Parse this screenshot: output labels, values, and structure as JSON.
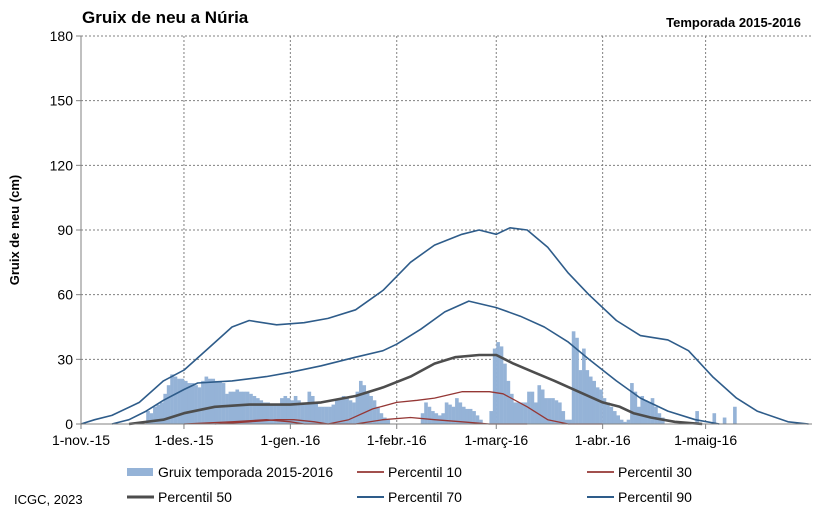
{
  "chart_data": {
    "type": "bar",
    "title": "Gruix de neu a Núria",
    "subtitle": "Temporada 2015-2016",
    "ylabel": "Gruix de neu (cm)",
    "xlabel": "",
    "ylim": [
      0,
      180
    ],
    "yticks": [
      0,
      30,
      60,
      90,
      120,
      150,
      180
    ],
    "x_start": "2015-11-01",
    "x_end": "2016-05-31",
    "xticks": [
      {
        "date": "2015-11-01",
        "label": "1-nov.-15"
      },
      {
        "date": "2015-12-01",
        "label": "1-des.-15"
      },
      {
        "date": "2016-01-01",
        "label": "1-gen.-16"
      },
      {
        "date": "2016-02-01",
        "label": "1-febr.-16"
      },
      {
        "date": "2016-03-01",
        "label": "1-març-16"
      },
      {
        "date": "2016-04-01",
        "label": "1-abr.-16"
      },
      {
        "date": "2016-05-01",
        "label": "1-maig-16"
      }
    ],
    "grid": "vertical",
    "legend": "bottom",
    "colors": {
      "bars": "#95b3d7",
      "p10": "#953735",
      "p30": "#953735",
      "p50": "#4d4d4d",
      "p70": "#2e5c8a",
      "p90": "#2e5c8a"
    },
    "bars": {
      "name": "Gruix temporada 2015-2016",
      "points": [
        [
          "2015-11-20",
          6
        ],
        [
          "2015-11-21",
          5
        ],
        [
          "2015-11-22",
          8
        ],
        [
          "2015-11-23",
          9
        ],
        [
          "2015-11-24",
          10
        ],
        [
          "2015-11-25",
          14
        ],
        [
          "2015-11-26",
          18
        ],
        [
          "2015-11-27",
          23
        ],
        [
          "2015-11-28",
          22
        ],
        [
          "2015-11-29",
          21
        ],
        [
          "2015-11-30",
          21
        ],
        [
          "2015-12-01",
          20
        ],
        [
          "2015-12-02",
          19
        ],
        [
          "2015-12-03",
          19
        ],
        [
          "2015-12-04",
          18
        ],
        [
          "2015-12-05",
          17
        ],
        [
          "2015-12-06",
          20
        ],
        [
          "2015-12-07",
          22
        ],
        [
          "2015-12-08",
          21
        ],
        [
          "2015-12-09",
          21
        ],
        [
          "2015-12-10",
          20
        ],
        [
          "2015-12-11",
          20
        ],
        [
          "2015-12-12",
          19
        ],
        [
          "2015-12-13",
          14
        ],
        [
          "2015-12-14",
          15
        ],
        [
          "2015-12-15",
          15
        ],
        [
          "2015-12-16",
          16
        ],
        [
          "2015-12-17",
          15
        ],
        [
          "2015-12-18",
          15
        ],
        [
          "2015-12-19",
          15
        ],
        [
          "2015-12-20",
          14
        ],
        [
          "2015-12-21",
          13
        ],
        [
          "2015-12-22",
          12
        ],
        [
          "2015-12-23",
          11
        ],
        [
          "2015-12-24",
          10
        ],
        [
          "2015-12-25",
          10
        ],
        [
          "2015-12-26",
          9
        ],
        [
          "2015-12-27",
          9
        ],
        [
          "2015-12-28",
          9
        ],
        [
          "2015-12-29",
          12
        ],
        [
          "2015-12-30",
          13
        ],
        [
          "2015-12-31",
          12
        ],
        [
          "2016-01-01",
          11
        ],
        [
          "2016-01-02",
          13
        ],
        [
          "2016-01-03",
          11
        ],
        [
          "2016-01-04",
          10
        ],
        [
          "2016-01-05",
          9
        ],
        [
          "2016-01-06",
          15
        ],
        [
          "2016-01-07",
          13
        ],
        [
          "2016-01-08",
          10
        ],
        [
          "2016-01-09",
          8
        ],
        [
          "2016-01-10",
          8
        ],
        [
          "2016-01-11",
          8
        ],
        [
          "2016-01-12",
          8
        ],
        [
          "2016-01-13",
          9
        ],
        [
          "2016-01-14",
          11
        ],
        [
          "2016-01-15",
          12
        ],
        [
          "2016-01-16",
          13
        ],
        [
          "2016-01-17",
          12
        ],
        [
          "2016-01-18",
          11
        ],
        [
          "2016-01-19",
          10
        ],
        [
          "2016-01-20",
          15
        ],
        [
          "2016-01-21",
          20
        ],
        [
          "2016-01-22",
          18
        ],
        [
          "2016-01-23",
          15
        ],
        [
          "2016-01-24",
          13
        ],
        [
          "2016-01-25",
          11
        ],
        [
          "2016-01-26",
          8
        ],
        [
          "2016-01-27",
          5
        ],
        [
          "2016-01-28",
          3
        ],
        [
          "2016-01-29",
          2
        ],
        [
          "2016-02-08",
          5
        ],
        [
          "2016-02-09",
          10
        ],
        [
          "2016-02-10",
          8
        ],
        [
          "2016-02-11",
          6
        ],
        [
          "2016-02-12",
          5
        ],
        [
          "2016-02-13",
          4
        ],
        [
          "2016-02-14",
          5
        ],
        [
          "2016-02-15",
          10
        ],
        [
          "2016-02-16",
          9
        ],
        [
          "2016-02-17",
          8
        ],
        [
          "2016-02-18",
          12
        ],
        [
          "2016-02-19",
          10
        ],
        [
          "2016-02-20",
          8
        ],
        [
          "2016-02-21",
          7
        ],
        [
          "2016-02-22",
          7
        ],
        [
          "2016-02-23",
          6
        ],
        [
          "2016-02-24",
          4
        ],
        [
          "2016-02-25",
          2
        ],
        [
          "2016-02-28",
          6
        ],
        [
          "2016-02-29",
          35
        ],
        [
          "2016-03-01",
          38
        ],
        [
          "2016-03-02",
          36
        ],
        [
          "2016-03-03",
          28
        ],
        [
          "2016-03-04",
          20
        ],
        [
          "2016-03-05",
          14
        ],
        [
          "2016-03-06",
          10
        ],
        [
          "2016-03-07",
          10
        ],
        [
          "2016-03-08",
          10
        ],
        [
          "2016-03-09",
          10
        ],
        [
          "2016-03-10",
          15
        ],
        [
          "2016-03-11",
          15
        ],
        [
          "2016-03-12",
          10
        ],
        [
          "2016-03-13",
          18
        ],
        [
          "2016-03-14",
          16
        ],
        [
          "2016-03-15",
          12
        ],
        [
          "2016-03-16",
          12
        ],
        [
          "2016-03-17",
          12
        ],
        [
          "2016-03-18",
          11
        ],
        [
          "2016-03-19",
          10
        ],
        [
          "2016-03-20",
          6
        ],
        [
          "2016-03-21",
          2
        ],
        [
          "2016-03-22",
          2
        ],
        [
          "2016-03-23",
          43
        ],
        [
          "2016-03-24",
          40
        ],
        [
          "2016-03-25",
          25
        ],
        [
          "2016-03-26",
          35
        ],
        [
          "2016-03-27",
          25
        ],
        [
          "2016-03-28",
          22
        ],
        [
          "2016-03-29",
          20
        ],
        [
          "2016-03-30",
          17
        ],
        [
          "2016-03-31",
          16
        ],
        [
          "2016-04-01",
          12
        ],
        [
          "2016-04-02",
          10
        ],
        [
          "2016-04-03",
          8
        ],
        [
          "2016-04-04",
          6
        ],
        [
          "2016-04-05",
          4
        ],
        [
          "2016-04-06",
          2
        ],
        [
          "2016-04-07",
          1
        ],
        [
          "2016-04-08",
          2
        ],
        [
          "2016-04-09",
          19
        ],
        [
          "2016-04-10",
          15
        ],
        [
          "2016-04-11",
          8
        ],
        [
          "2016-04-12",
          13
        ],
        [
          "2016-04-13",
          11
        ],
        [
          "2016-04-14",
          10
        ],
        [
          "2016-04-15",
          12
        ],
        [
          "2016-04-16",
          8
        ],
        [
          "2016-04-17",
          5
        ],
        [
          "2016-04-18",
          3
        ],
        [
          "2016-04-28",
          6
        ],
        [
          "2016-05-03",
          5
        ],
        [
          "2016-05-06",
          3
        ],
        [
          "2016-05-09",
          8
        ]
      ]
    },
    "series": [
      {
        "name": "Percentil 10",
        "key": "p10",
        "width": 1.3,
        "points": [
          [
            "2015-12-01",
            0
          ],
          [
            "2015-12-15",
            1
          ],
          [
            "2015-12-25",
            2
          ],
          [
            "2016-01-01",
            1
          ],
          [
            "2016-01-05",
            0
          ],
          [
            "2016-01-20",
            0
          ],
          [
            "2016-01-28",
            2
          ],
          [
            "2016-02-05",
            3
          ],
          [
            "2016-02-12",
            2
          ],
          [
            "2016-02-20",
            1
          ],
          [
            "2016-02-28",
            0
          ],
          [
            "2016-03-10",
            0
          ]
        ]
      },
      {
        "name": "Percentil 30",
        "key": "p30",
        "width": 1.3,
        "points": [
          [
            "2015-12-10",
            0
          ],
          [
            "2015-12-20",
            1
          ],
          [
            "2015-12-28",
            2
          ],
          [
            "2016-01-02",
            2
          ],
          [
            "2016-01-08",
            1
          ],
          [
            "2016-01-12",
            0
          ],
          [
            "2016-01-18",
            2
          ],
          [
            "2016-01-25",
            7
          ],
          [
            "2016-02-01",
            10
          ],
          [
            "2016-02-07",
            11
          ],
          [
            "2016-02-12",
            12
          ],
          [
            "2016-02-20",
            15
          ],
          [
            "2016-02-28",
            15
          ],
          [
            "2016-03-03",
            14
          ],
          [
            "2016-03-10",
            8
          ],
          [
            "2016-03-16",
            2
          ],
          [
            "2016-03-22",
            0
          ],
          [
            "2016-04-01",
            0
          ]
        ]
      },
      {
        "name": "Percentil 50",
        "key": "p50",
        "width": 2.6,
        "points": [
          [
            "2015-11-15",
            0
          ],
          [
            "2015-11-25",
            2
          ],
          [
            "2015-12-01",
            5
          ],
          [
            "2015-12-10",
            8
          ],
          [
            "2015-12-20",
            9
          ],
          [
            "2016-01-01",
            9
          ],
          [
            "2016-01-10",
            10
          ],
          [
            "2016-01-20",
            13
          ],
          [
            "2016-01-28",
            17
          ],
          [
            "2016-02-05",
            22
          ],
          [
            "2016-02-12",
            28
          ],
          [
            "2016-02-18",
            31
          ],
          [
            "2016-02-25",
            32
          ],
          [
            "2016-03-01",
            32
          ],
          [
            "2016-03-06",
            28
          ],
          [
            "2016-03-12",
            24
          ],
          [
            "2016-03-18",
            20
          ],
          [
            "2016-03-25",
            15
          ],
          [
            "2016-04-01",
            10
          ],
          [
            "2016-04-06",
            8
          ],
          [
            "2016-04-10",
            5
          ],
          [
            "2016-04-15",
            3
          ],
          [
            "2016-04-22",
            1
          ],
          [
            "2016-04-30",
            0
          ]
        ]
      },
      {
        "name": "Percentil 70",
        "key": "p70",
        "width": 1.6,
        "points": [
          [
            "2015-11-10",
            0
          ],
          [
            "2015-11-15",
            2
          ],
          [
            "2015-11-20",
            6
          ],
          [
            "2015-11-25",
            11
          ],
          [
            "2015-12-01",
            16
          ],
          [
            "2015-12-05",
            19
          ],
          [
            "2015-12-15",
            20
          ],
          [
            "2015-12-25",
            22
          ],
          [
            "2016-01-01",
            24
          ],
          [
            "2016-01-10",
            27
          ],
          [
            "2016-01-20",
            31
          ],
          [
            "2016-01-28",
            34
          ],
          [
            "2016-02-01",
            37
          ],
          [
            "2016-02-08",
            44
          ],
          [
            "2016-02-15",
            52
          ],
          [
            "2016-02-22",
            57
          ],
          [
            "2016-03-01",
            54
          ],
          [
            "2016-03-08",
            50
          ],
          [
            "2016-03-15",
            45
          ],
          [
            "2016-03-22",
            38
          ],
          [
            "2016-03-28",
            30
          ],
          [
            "2016-04-05",
            20
          ],
          [
            "2016-04-12",
            12
          ],
          [
            "2016-04-20",
            6
          ],
          [
            "2016-04-28",
            2
          ],
          [
            "2016-05-05",
            0
          ]
        ]
      },
      {
        "name": "Percentil 90",
        "key": "p90",
        "width": 1.6,
        "points": [
          [
            "2015-11-01",
            0
          ],
          [
            "2015-11-05",
            2
          ],
          [
            "2015-11-10",
            4
          ],
          [
            "2015-11-18",
            10
          ],
          [
            "2015-11-25",
            20
          ],
          [
            "2015-12-01",
            25
          ],
          [
            "2015-12-08",
            35
          ],
          [
            "2015-12-15",
            45
          ],
          [
            "2015-12-20",
            48
          ],
          [
            "2015-12-28",
            46
          ],
          [
            "2016-01-05",
            47
          ],
          [
            "2016-01-12",
            49
          ],
          [
            "2016-01-20",
            53
          ],
          [
            "2016-01-28",
            62
          ],
          [
            "2016-02-05",
            75
          ],
          [
            "2016-02-12",
            83
          ],
          [
            "2016-02-20",
            88
          ],
          [
            "2016-02-25",
            90
          ],
          [
            "2016-03-01",
            88
          ],
          [
            "2016-03-05",
            91
          ],
          [
            "2016-03-10",
            90
          ],
          [
            "2016-03-16",
            82
          ],
          [
            "2016-03-22",
            70
          ],
          [
            "2016-03-28",
            60
          ],
          [
            "2016-04-05",
            48
          ],
          [
            "2016-04-12",
            41
          ],
          [
            "2016-04-20",
            39
          ],
          [
            "2016-04-26",
            34
          ],
          [
            "2016-05-03",
            22
          ],
          [
            "2016-05-10",
            12
          ],
          [
            "2016-05-16",
            6
          ],
          [
            "2016-05-25",
            1
          ],
          [
            "2016-05-31",
            0
          ]
        ]
      }
    ]
  },
  "footer": {
    "credit": "ICGC, 2023"
  }
}
